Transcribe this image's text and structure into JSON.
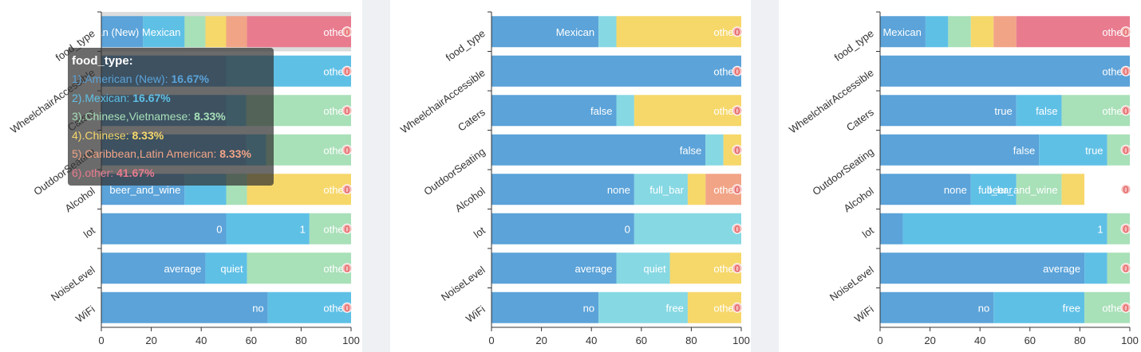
{
  "chart_data": [
    {
      "type": "bar",
      "stacked_percent": true,
      "categories": [
        "food_type",
        "WheelchairAccessible",
        "Caters",
        "OutdoorSeating",
        "Alcohol",
        "lot",
        "NoiseLevel",
        "WiFi"
      ],
      "xlim": [
        0,
        100
      ],
      "xticks": [
        "0",
        "20",
        "40",
        "60",
        "80",
        "100"
      ],
      "hovered_category": "food_type",
      "rows": [
        {
          "segments": [
            {
              "value": 16.67,
              "label": "American (New)",
              "color": "#5ba3d9"
            },
            {
              "value": 16.67,
              "label": "Mexican",
              "color": "#5fc0e6"
            },
            {
              "value": 8.33,
              "label": "",
              "color": "#a8e0b8"
            },
            {
              "value": 8.33,
              "label": "",
              "color": "#f6d76a"
            },
            {
              "value": 8.33,
              "label": "",
              "color": "#f2a486"
            },
            {
              "value": 41.67,
              "label": "other",
              "color": "#e97b8f"
            }
          ]
        },
        {
          "segments": [
            {
              "value": 50,
              "label": "",
              "color": "#5ba3d9"
            },
            {
              "value": 50,
              "label": "other",
              "color": "#5fc0e6"
            }
          ]
        },
        {
          "segments": [
            {
              "value": 50,
              "label": "",
              "color": "#5ba3d9"
            },
            {
              "value": 8,
              "label": "",
              "color": "#5fc0e6"
            },
            {
              "value": 42,
              "label": "other",
              "color": "#a8e0b8"
            }
          ]
        },
        {
          "segments": [
            {
              "value": 58,
              "label": "",
              "color": "#5ba3d9"
            },
            {
              "value": 8,
              "label": "",
              "color": "#5fc0e6"
            },
            {
              "value": 34,
              "label": "other",
              "color": "#a8e0b8"
            }
          ]
        },
        {
          "segments": [
            {
              "value": 33.33,
              "label": "beer_and_wine",
              "color": "#5ba3d9"
            },
            {
              "value": 16.67,
              "label": "",
              "color": "#5fc0e6"
            },
            {
              "value": 8.33,
              "label": "",
              "color": "#a8e0b8"
            },
            {
              "value": 41.67,
              "label": "other",
              "color": "#f6d76a"
            }
          ]
        },
        {
          "segments": [
            {
              "value": 50,
              "label": "0",
              "color": "#5ba3d9"
            },
            {
              "value": 33.33,
              "label": "1",
              "color": "#5fc0e6"
            },
            {
              "value": 16.67,
              "label": "other",
              "color": "#a8e0b8"
            }
          ]
        },
        {
          "segments": [
            {
              "value": 41.67,
              "label": "average",
              "color": "#5ba3d9"
            },
            {
              "value": 16.67,
              "label": "quiet",
              "color": "#5fc0e6"
            },
            {
              "value": 41.67,
              "label": "other",
              "color": "#a8e0b8"
            }
          ]
        },
        {
          "segments": [
            {
              "value": 66.67,
              "label": "no",
              "color": "#5ba3d9"
            },
            {
              "value": 33.33,
              "label": "other",
              "color": "#5fc0e6"
            }
          ]
        }
      ]
    },
    {
      "type": "bar",
      "stacked_percent": true,
      "categories": [
        "food_type",
        "WheelchairAccessible",
        "Caters",
        "OutdoorSeating",
        "Alcohol",
        "lot",
        "NoiseLevel",
        "WiFi"
      ],
      "xlim": [
        0,
        100
      ],
      "xticks": [
        "0",
        "20",
        "40",
        "60",
        "80",
        "100"
      ],
      "rows": [
        {
          "segments": [
            {
              "value": 42.86,
              "label": "Mexican",
              "color": "#5ba3d9"
            },
            {
              "value": 7.14,
              "label": "",
              "color": "#86d8e3"
            },
            {
              "value": 50,
              "label": "other",
              "color": "#f6d76a"
            }
          ]
        },
        {
          "segments": [
            {
              "value": 100,
              "label": "other",
              "color": "#5ba3d9"
            }
          ]
        },
        {
          "segments": [
            {
              "value": 50,
              "label": "false",
              "color": "#5ba3d9"
            },
            {
              "value": 7.14,
              "label": "",
              "color": "#86d8e3"
            },
            {
              "value": 42.86,
              "label": "other",
              "color": "#f6d76a"
            }
          ]
        },
        {
          "segments": [
            {
              "value": 85.71,
              "label": "false",
              "color": "#5ba3d9"
            },
            {
              "value": 7.14,
              "label": "",
              "color": "#86d8e3"
            },
            {
              "value": 7.14,
              "label": "",
              "color": "#f6d76a"
            }
          ]
        },
        {
          "segments": [
            {
              "value": 57.14,
              "label": "none",
              "color": "#5ba3d9"
            },
            {
              "value": 21.43,
              "label": "full_bar",
              "color": "#86d8e3"
            },
            {
              "value": 7.14,
              "label": "",
              "color": "#f6d76a"
            },
            {
              "value": 14.29,
              "label": "other",
              "color": "#f2a486"
            }
          ]
        },
        {
          "segments": [
            {
              "value": 57.14,
              "label": "0",
              "color": "#5ba3d9"
            },
            {
              "value": 42.86,
              "label": "",
              "color": "#86d8e3"
            }
          ]
        },
        {
          "segments": [
            {
              "value": 50,
              "label": "average",
              "color": "#5ba3d9"
            },
            {
              "value": 21.43,
              "label": "quiet",
              "color": "#86d8e3"
            },
            {
              "value": 28.57,
              "label": "other",
              "color": "#f6d76a"
            }
          ]
        },
        {
          "segments": [
            {
              "value": 42.86,
              "label": "no",
              "color": "#5ba3d9"
            },
            {
              "value": 35.71,
              "label": "free",
              "color": "#86d8e3"
            },
            {
              "value": 21.43,
              "label": "other",
              "color": "#f6d76a"
            }
          ]
        }
      ]
    },
    {
      "type": "bar",
      "stacked_percent": true,
      "categories": [
        "food_type",
        "WheelchairAccessible",
        "Caters",
        "OutdoorSeating",
        "Alcohol",
        "lot",
        "NoiseLevel",
        "WiFi"
      ],
      "xlim": [
        0,
        100
      ],
      "xticks": [
        "0",
        "20",
        "40",
        "60",
        "80",
        "100"
      ],
      "rows": [
        {
          "segments": [
            {
              "value": 18.18,
              "label": "Mexican",
              "color": "#5ba3d9"
            },
            {
              "value": 9.09,
              "label": "",
              "color": "#5fc0e6"
            },
            {
              "value": 9.09,
              "label": "",
              "color": "#a8e0b8"
            },
            {
              "value": 9.09,
              "label": "",
              "color": "#f6d76a"
            },
            {
              "value": 9.09,
              "label": "",
              "color": "#f2a486"
            },
            {
              "value": 45.45,
              "label": "other",
              "color": "#e97b8f"
            }
          ]
        },
        {
          "segments": [
            {
              "value": 100,
              "label": "other",
              "color": "#5ba3d9"
            }
          ]
        },
        {
          "segments": [
            {
              "value": 54.55,
              "label": "true",
              "color": "#5ba3d9"
            },
            {
              "value": 18.18,
              "label": "false",
              "color": "#5fc0e6"
            },
            {
              "value": 27.27,
              "label": "other",
              "color": "#a8e0b8"
            }
          ]
        },
        {
          "segments": [
            {
              "value": 63.64,
              "label": "false",
              "color": "#5ba3d9"
            },
            {
              "value": 27.27,
              "label": "true",
              "color": "#5fc0e6"
            },
            {
              "value": 9.09,
              "label": "",
              "color": "#a8e0b8"
            }
          ]
        },
        {
          "segments": [
            {
              "value": 36.36,
              "label": "none",
              "color": "#5ba3d9"
            },
            {
              "value": 18.18,
              "label": "full_bar",
              "color": "#5fc0e6"
            },
            {
              "value": 18.18,
              "label": "beer_and_wine",
              "color": "#a8e0b8"
            },
            {
              "value": 9.09,
              "label": "",
              "color": "#f6d76a"
            }
          ]
        },
        {
          "segments": [
            {
              "value": 9.09,
              "label": "",
              "color": "#5ba3d9"
            },
            {
              "value": 81.82,
              "label": "1",
              "color": "#5fc0e6"
            },
            {
              "value": 9.09,
              "label": "",
              "color": "#a8e0b8"
            }
          ]
        },
        {
          "segments": [
            {
              "value": 81.82,
              "label": "average",
              "color": "#5ba3d9"
            },
            {
              "value": 9.09,
              "label": "",
              "color": "#5fc0e6"
            },
            {
              "value": 9.09,
              "label": "",
              "color": "#a8e0b8"
            }
          ]
        },
        {
          "segments": [
            {
              "value": 45.45,
              "label": "no",
              "color": "#5ba3d9"
            },
            {
              "value": 36.36,
              "label": "free",
              "color": "#5fc0e6"
            },
            {
              "value": 18.18,
              "label": "other",
              "color": "#a8e0b8"
            }
          ]
        }
      ]
    }
  ],
  "tooltip": {
    "title": "food_type:",
    "items": [
      {
        "num": "1)",
        "name": ".American (New): ",
        "value": "16.67%",
        "color": "#5ba3d9"
      },
      {
        "num": "2)",
        "name": ".Mexican: ",
        "value": "16.67%",
        "color": "#5fc0e6"
      },
      {
        "num": "3)",
        "name": ".Chinese,Vietnamese: ",
        "value": "8.33%",
        "color": "#a8e0b8"
      },
      {
        "num": "4)",
        "name": ".Chinese: ",
        "value": "8.33%",
        "color": "#f6d76a"
      },
      {
        "num": "5)",
        "name": ".Caribbean,Latin American: ",
        "value": "8.33%",
        "color": "#f2a486"
      },
      {
        "num": "6)",
        "name": ".other: ",
        "value": "41.67%",
        "color": "#e97b8f"
      }
    ]
  },
  "marker_label": "0",
  "colors": {
    "axis": "#333333",
    "hover_band": "#dcdcdc",
    "marker_fill": "#f4b8b8",
    "marker_text": "#e04848"
  }
}
